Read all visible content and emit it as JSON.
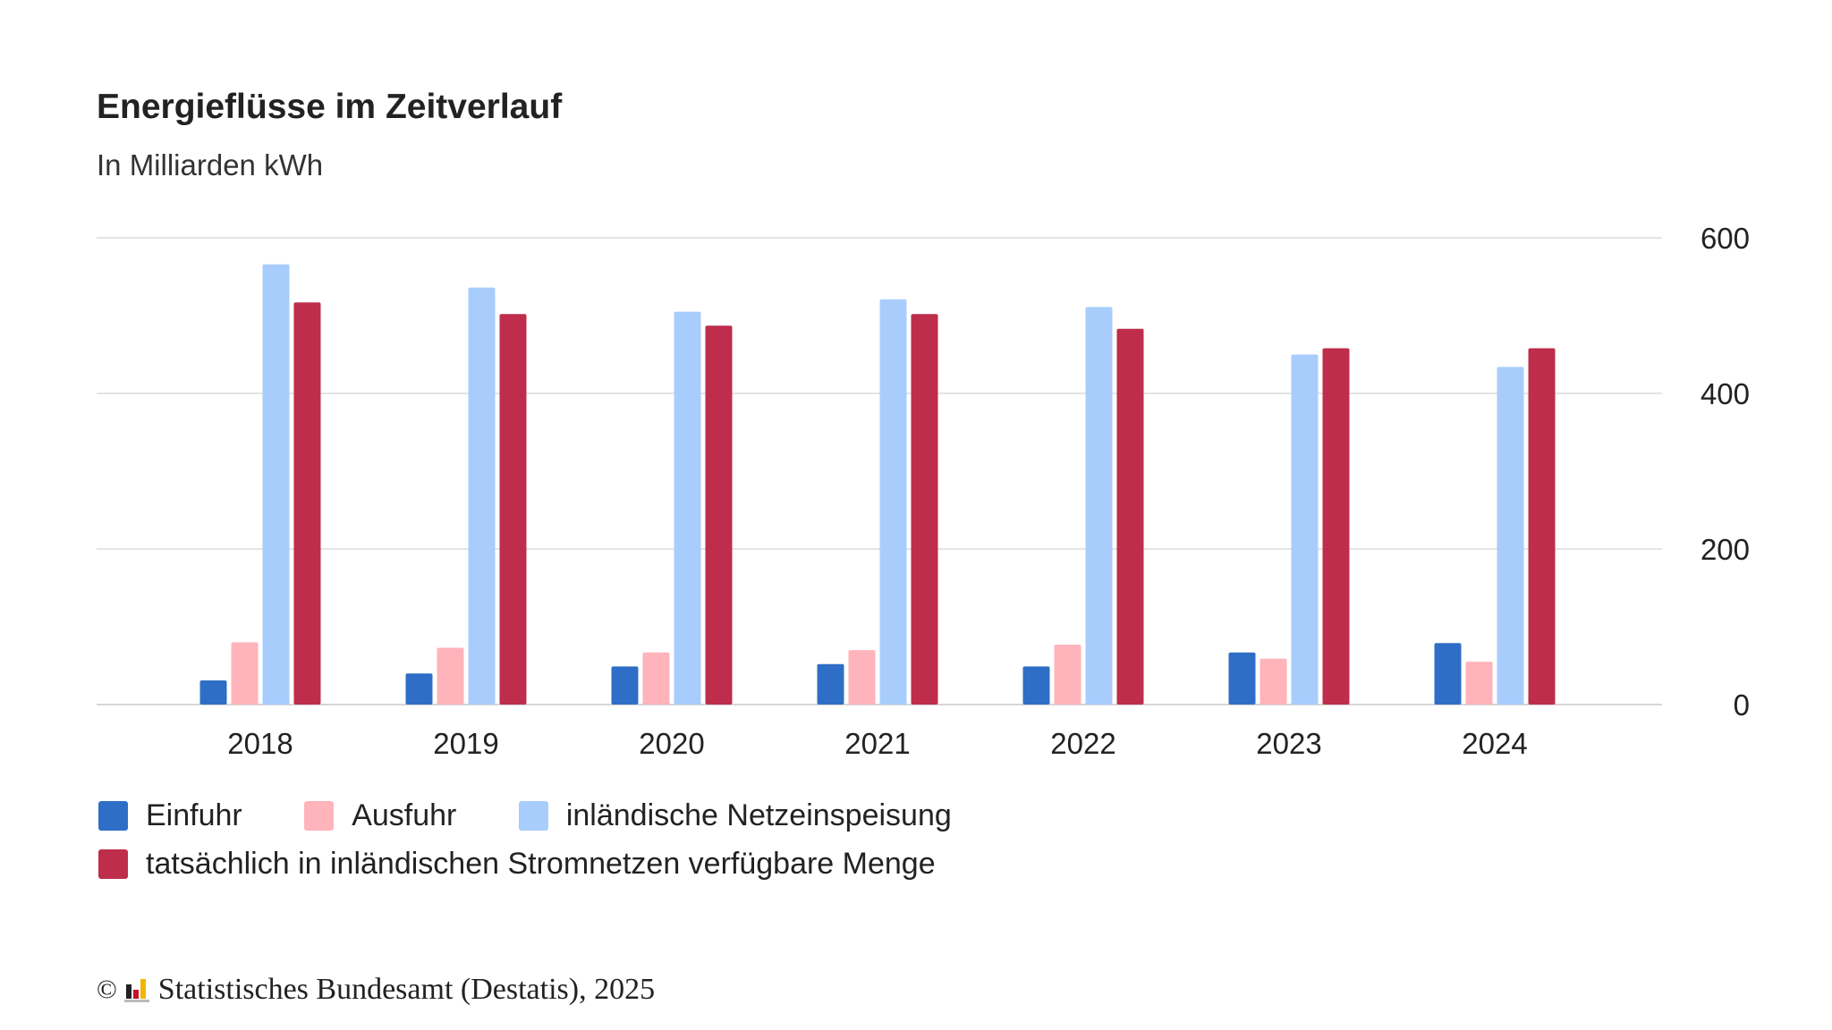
{
  "chart_data": {
    "type": "bar",
    "title": "Energieflüsse im Zeitverlauf",
    "subtitle": "In Milliarden kWh",
    "categories": [
      "2018",
      "2019",
      "2020",
      "2021",
      "2022",
      "2023",
      "2024"
    ],
    "series": [
      {
        "name": "Einfuhr",
        "color": "#2f6ec6",
        "values": [
          31,
          40,
          49,
          52,
          49,
          67,
          79
        ]
      },
      {
        "name": "Ausfuhr",
        "color": "#ffb3bb",
        "values": [
          80,
          73,
          67,
          70,
          77,
          59,
          55
        ]
      },
      {
        "name": "inländische Netzeinspeisung",
        "color": "#a8cdfc",
        "values": [
          566,
          536,
          505,
          521,
          511,
          450,
          434
        ]
      },
      {
        "name": "tatsächlich in inländischen Stromnetzen verfügbare Menge",
        "color": "#be2d4b",
        "values": [
          517,
          502,
          487,
          502,
          483,
          458,
          458
        ]
      }
    ],
    "y_ticks": [
      "0",
      "200",
      "400",
      "600"
    ],
    "ylim": [
      0,
      600
    ],
    "y_axis_side": "right",
    "grid": true,
    "legend_position": "bottom-left"
  },
  "source": {
    "copyright_symbol": "©",
    "text": "Statistisches Bundesamt (Destatis), 2025"
  }
}
